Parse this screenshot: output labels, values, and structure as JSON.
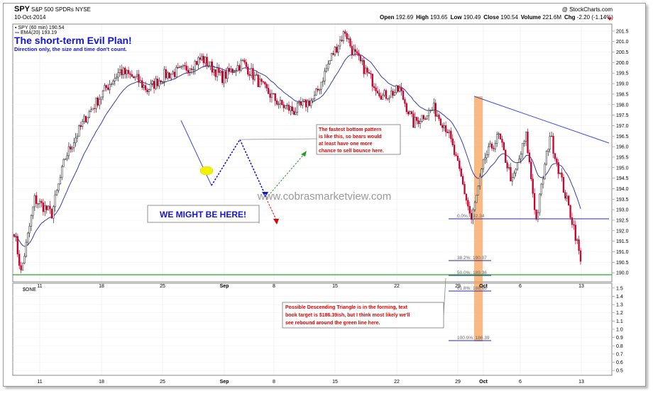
{
  "header": {
    "ticker": "SPY",
    "name": "S&P 500 SPDRs NYSE",
    "date": "10-Oct-2014",
    "credit": "@ StockCharts.com",
    "ohlc": {
      "open_label": "Open ",
      "open": "192.69",
      "high_label": "High ",
      "high": "193.65",
      "low_label": "Low ",
      "low": "190.49",
      "close_label": "Close ",
      "close": "190.54",
      "volume_label": "Volume ",
      "volume": "221.6M",
      "chg_label": "Chg ",
      "chg": "-2.20 (-1.14%)"
    }
  },
  "legend": {
    "price_series": "SPY (60 min) 190.54",
    "ema_series": "EMA(20) 193.19",
    "lower_panel": "$ONE"
  },
  "annotations": {
    "title": "The short-term Evil Plan!",
    "subtitle": "Direction only, the size and time don't count.",
    "callout": "WE MIGHT BE HERE!",
    "watermark": "www.cobrasmarketview.com",
    "note1": [
      "The fastest bottom pattern",
      "is like this, so bears would",
      "at least have one more",
      "chance to sell bounce here."
    ],
    "note2": [
      "Possible Descending Triangle is in the forming, text",
      "book target is $186.39ish, but I think most likely we'll",
      "see rebound around the green line here."
    ]
  },
  "chart_data": [
    {
      "type": "candlestick",
      "series_name": "SPY (60 min)",
      "x_tick_labels": [
        "11",
        "18",
        "25",
        "Sep",
        "8",
        "15",
        "22",
        "29",
        "Oct",
        "6",
        "13"
      ],
      "y_tick_labels": [
        "190.0",
        "190.5",
        "191.0",
        "191.5",
        "192.0",
        "192.5",
        "193.0",
        "193.5",
        "194.0",
        "194.5",
        "195.0",
        "195.5",
        "196.0",
        "196.5",
        "197.0",
        "197.5",
        "198.0",
        "198.5",
        "199.0",
        "199.5",
        "200.0",
        "200.5",
        "201.0",
        "201.5"
      ],
      "ylim": [
        189.6,
        201.8
      ],
      "anchors": [
        [
          0,
          192.0
        ],
        [
          4,
          190.0
        ],
        [
          12,
          193.5
        ],
        [
          22,
          192.8
        ],
        [
          30,
          195.5
        ],
        [
          42,
          197.4
        ],
        [
          54,
          198.8
        ],
        [
          62,
          199.6
        ],
        [
          72,
          199.2
        ],
        [
          78,
          198.7
        ],
        [
          88,
          199.4
        ],
        [
          98,
          199.6
        ],
        [
          110,
          200.2
        ],
        [
          122,
          199.3
        ],
        [
          134,
          200.0
        ],
        [
          146,
          198.8
        ],
        [
          156,
          198.0
        ],
        [
          164,
          197.7
        ],
        [
          176,
          198.3
        ],
        [
          186,
          200.3
        ],
        [
          194,
          201.5
        ],
        [
          198,
          200.6
        ],
        [
          206,
          199.6
        ],
        [
          216,
          198.4
        ],
        [
          226,
          198.7
        ],
        [
          234,
          197.1
        ],
        [
          240,
          197.5
        ],
        [
          246,
          197.8
        ],
        [
          254,
          196.8
        ],
        [
          262,
          194.5
        ],
        [
          268,
          192.5
        ],
        [
          276,
          195.5
        ],
        [
          284,
          196.5
        ],
        [
          292,
          194.3
        ],
        [
          300,
          196.5
        ],
        [
          306,
          192.5
        ],
        [
          314,
          196.6
        ],
        [
          322,
          194.0
        ],
        [
          328,
          192.2
        ],
        [
          332,
          190.6
        ]
      ],
      "ema": {
        "name": "EMA(20)",
        "last": 193.19
      },
      "annotation_values": {
        "ascending_dot_price": 194.5,
        "fib_high": 198.3,
        "fib_low": 192.34
      }
    },
    {
      "type": "fib-levels",
      "labels": [
        "0.0%: 192.34",
        "38.2%: 190.07",
        "50.0%: 189.36",
        "61.8%: 188.66",
        "100.0%: 186.39"
      ],
      "values": [
        192.34,
        190.07,
        189.36,
        188.66,
        186.39
      ]
    },
    {
      "type": "line",
      "series_name": "$ONE",
      "y_tick_labels": [
        "0.5",
        "0.6",
        "0.7",
        "0.8",
        "0.9",
        "1.0",
        "1.1",
        "1.2",
        "1.3",
        "1.4",
        "1.5"
      ],
      "ylim": [
        0.45,
        1.55
      ]
    }
  ],
  "colors": {
    "up_bar": "#222222",
    "down_bar": "#c8002d",
    "ema": "#3a3aa8",
    "trend": "#3a4ad8",
    "green_line": "#27a827",
    "fib": "#2b2b9e",
    "orange_band": "#f6a25a",
    "annotation_red": "#e00000",
    "annotation_blue": "#1414d2"
  }
}
